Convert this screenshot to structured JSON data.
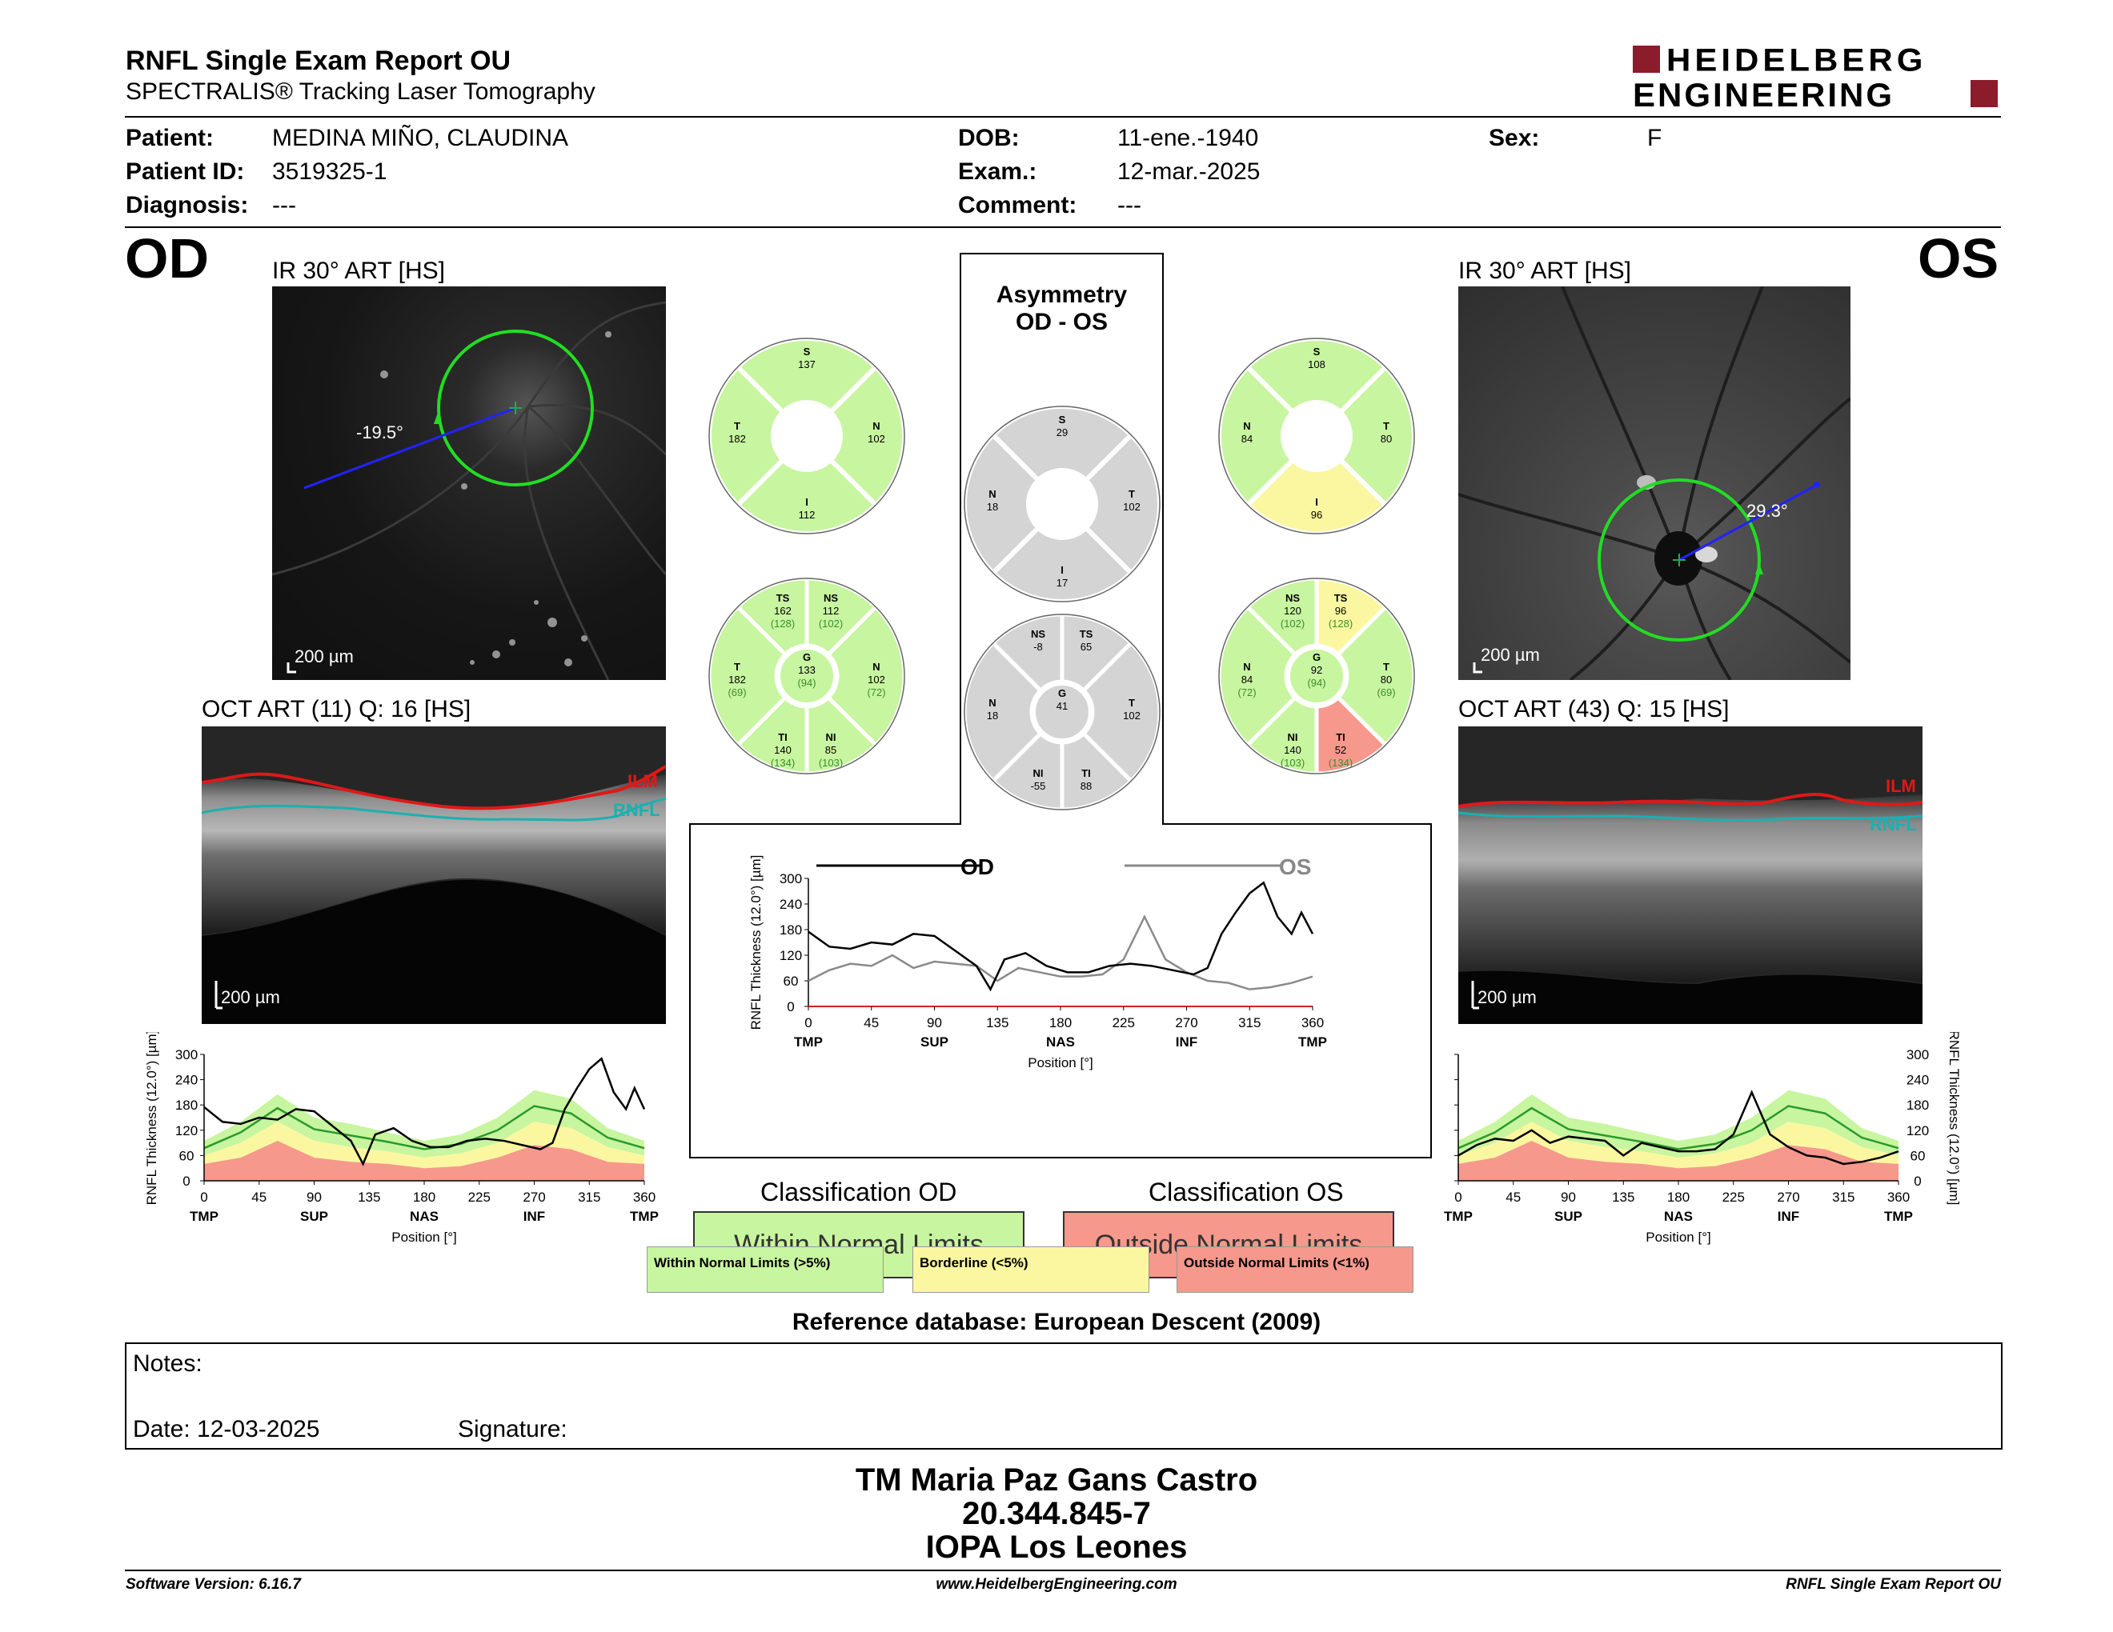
{
  "header": {
    "title": "RNFL Single Exam Report OU",
    "subtitle": "SPECTRALIS® Tracking Laser Tomography",
    "logo_line1": "HEIDELBERG",
    "logo_line2": "ENGINEERING",
    "brand_color": "#8b1c2c"
  },
  "patient": {
    "patient_label": "Patient:",
    "patient_value": "MEDINA MIÑO, CLAUDINA",
    "id_label": "Patient ID:",
    "id_value": "3519325-1",
    "diag_label": "Diagnosis:",
    "diag_value": "---",
    "dob_label": "DOB:",
    "dob_value": "11-ene.-1940",
    "exam_label": "Exam.:",
    "exam_value": "12-mar.-2025",
    "comment_label": "Comment:",
    "comment_value": "---",
    "sex_label": "Sex:",
    "sex_value": "F"
  },
  "od": {
    "eye": "OD",
    "ir_title": "IR 30° ART [HS]",
    "angle": "-19.5°",
    "scale": "200 µm",
    "oct_title": "OCT ART (11) Q: 16 [HS]",
    "oct_scale": "200 µm",
    "ilm": "ILM",
    "rnfl": "RNFL",
    "classification_title": "Classification OD",
    "classification": "Within Normal Limits",
    "quad": {
      "S": "137",
      "T": "182",
      "N": "102",
      "I": "112"
    },
    "sectors": {
      "TS": [
        "162",
        "(128)"
      ],
      "NS": [
        "112",
        "(102)"
      ],
      "T": [
        "182",
        "(69)"
      ],
      "G": [
        "133",
        "(94)"
      ],
      "N": [
        "102",
        "(72)"
      ],
      "TI": [
        "140",
        "(134)"
      ],
      "NI": [
        "85",
        "(103)"
      ]
    },
    "quad_colors": {
      "S": "#c8f5a0",
      "T": "#c8f5a0",
      "N": "#c8f5a0",
      "I": "#c8f5a0"
    },
    "sector_colors": {
      "TS": "#c8f5a0",
      "NS": "#c8f5a0",
      "T": "#c8f5a0",
      "N": "#c8f5a0",
      "TI": "#c8f5a0",
      "NI": "#c8f5a0",
      "G": "#c8f5a0"
    }
  },
  "os": {
    "eye": "OS",
    "ir_title": "IR 30° ART [HS]",
    "angle": "29.3°",
    "scale": "200 µm",
    "oct_title": "OCT ART (43) Q: 15 [HS]",
    "oct_scale": "200 µm",
    "ilm": "ILM",
    "rnfl": "RNFL",
    "classification_title": "Classification OS",
    "classification": "Outside Normal Limits",
    "quad": {
      "S": "108",
      "N": "84",
      "T": "80",
      "I": "96"
    },
    "sectors": {
      "NS": [
        "120",
        "(102)"
      ],
      "TS": [
        "96",
        "(128)"
      ],
      "N": [
        "84",
        "(72)"
      ],
      "G": [
        "92",
        "(94)"
      ],
      "T": [
        "80",
        "(69)"
      ],
      "NI": [
        "140",
        "(103)"
      ],
      "TI": [
        "52",
        "(134)"
      ]
    },
    "quad_colors": {
      "S": "#c8f5a0",
      "N": "#c8f5a0",
      "T": "#c8f5a0",
      "I": "#fbf7a0"
    },
    "sector_colors": {
      "NS": "#c8f5a0",
      "TS": "#fbf7a0",
      "N": "#c8f5a0",
      "T": "#c8f5a0",
      "NI": "#c8f5a0",
      "TI": "#f7988c",
      "G": "#c8f5a0"
    }
  },
  "asym": {
    "title1": "Asymmetry",
    "title2": "OD - OS",
    "quad": {
      "S": "29",
      "N": "18",
      "T": "102",
      "I": "17"
    },
    "sectors": {
      "NS": "-8",
      "TS": "65",
      "N": "18",
      "G": "41",
      "T": "102",
      "NI": "-55",
      "TI": "88"
    }
  },
  "chart_labels": {
    "ylabel": "RNFL Thickness (12.0°) [µm]",
    "xlabel": "Position [°]",
    "od_legend": "OD",
    "os_legend": "OS",
    "yticks": [
      "300",
      "240",
      "180",
      "120",
      "60",
      "0"
    ],
    "center_yticks": [
      "300",
      "240",
      "180",
      "120",
      "60",
      "0"
    ],
    "xticks": [
      "0",
      "45",
      "90",
      "135",
      "180",
      "225",
      "270",
      "315",
      "360"
    ],
    "xcats": [
      "TMP",
      "SUP",
      "NAS",
      "INF",
      "TMP"
    ]
  },
  "chart_data": [
    {
      "type": "line",
      "series": [
        {
          "name": "OD",
          "x": [
            0,
            15,
            30,
            45,
            60,
            75,
            90,
            105,
            120,
            130,
            140,
            155,
            170,
            185,
            200,
            215,
            230,
            245,
            260,
            275,
            285,
            295,
            305,
            315,
            325,
            335,
            345,
            352,
            360
          ],
          "values": [
            175,
            140,
            135,
            150,
            145,
            170,
            165,
            130,
            95,
            40,
            110,
            125,
            95,
            80,
            80,
            95,
            100,
            95,
            85,
            75,
            90,
            170,
            220,
            265,
            290,
            210,
            170,
            220,
            170
          ]
        }
      ],
      "xlim": [
        0,
        360
      ],
      "ylim": [
        0,
        300
      ]
    },
    {
      "type": "line",
      "series": [
        {
          "name": "OS",
          "x": [
            0,
            15,
            30,
            45,
            60,
            75,
            90,
            105,
            120,
            135,
            150,
            165,
            180,
            195,
            210,
            225,
            240,
            255,
            270,
            285,
            300,
            315,
            330,
            345,
            360
          ],
          "values": [
            60,
            85,
            100,
            95,
            120,
            90,
            105,
            100,
            95,
            60,
            90,
            80,
            70,
            70,
            75,
            110,
            210,
            110,
            80,
            60,
            55,
            40,
            45,
            55,
            70
          ]
        }
      ],
      "xlim": [
        0,
        360
      ],
      "ylim": [
        0,
        300
      ]
    },
    {
      "type": "line",
      "series": [
        {
          "name": "OD",
          "x": [
            0,
            15,
            30,
            45,
            60,
            75,
            90,
            105,
            120,
            130,
            140,
            155,
            170,
            185,
            200,
            215,
            230,
            245,
            260,
            275,
            285,
            295,
            305,
            315,
            325,
            335,
            345,
            352,
            360
          ],
          "values": [
            175,
            140,
            135,
            150,
            145,
            170,
            165,
            130,
            95,
            40,
            110,
            125,
            95,
            80,
            80,
            95,
            100,
            95,
            85,
            75,
            90,
            170,
            220,
            265,
            290,
            210,
            170,
            220,
            170
          ]
        },
        {
          "name": "OS",
          "x": [
            0,
            15,
            30,
            45,
            60,
            75,
            90,
            105,
            120,
            135,
            150,
            165,
            180,
            195,
            210,
            225,
            240,
            255,
            270,
            285,
            300,
            315,
            330,
            345,
            360
          ],
          "values": [
            60,
            85,
            100,
            95,
            120,
            90,
            105,
            100,
            95,
            60,
            90,
            80,
            70,
            70,
            75,
            110,
            210,
            110,
            80,
            60,
            55,
            40,
            45,
            55,
            70
          ]
        }
      ],
      "xlim": [
        0,
        360
      ],
      "ylim": [
        0,
        300
      ]
    }
  ],
  "legend": {
    "wnl": "Within Normal Limits (>5%)",
    "bl": "Borderline (<5%)",
    "onl": "Outside Normal Limits (<1%)",
    "colors": {
      "green": "#c8f5a0",
      "yellow": "#fbf7a0",
      "red": "#f7988c",
      "gray": "#d4d4d4"
    }
  },
  "reference": "Reference database: European Descent (2009)",
  "notes": {
    "notes_label": "Notes:",
    "date_label": "Date: 12-03-2025",
    "signature_label": "Signature:"
  },
  "signature": {
    "name": "TM Maria Paz Gans Castro",
    "id": "20.344.845-7",
    "org": "IOPA Los Leones"
  },
  "footer": {
    "version": "Software Version: 6.16.7",
    "url": "www.HeidelbergEngineering.com",
    "report": "RNFL Single Exam Report OU"
  }
}
